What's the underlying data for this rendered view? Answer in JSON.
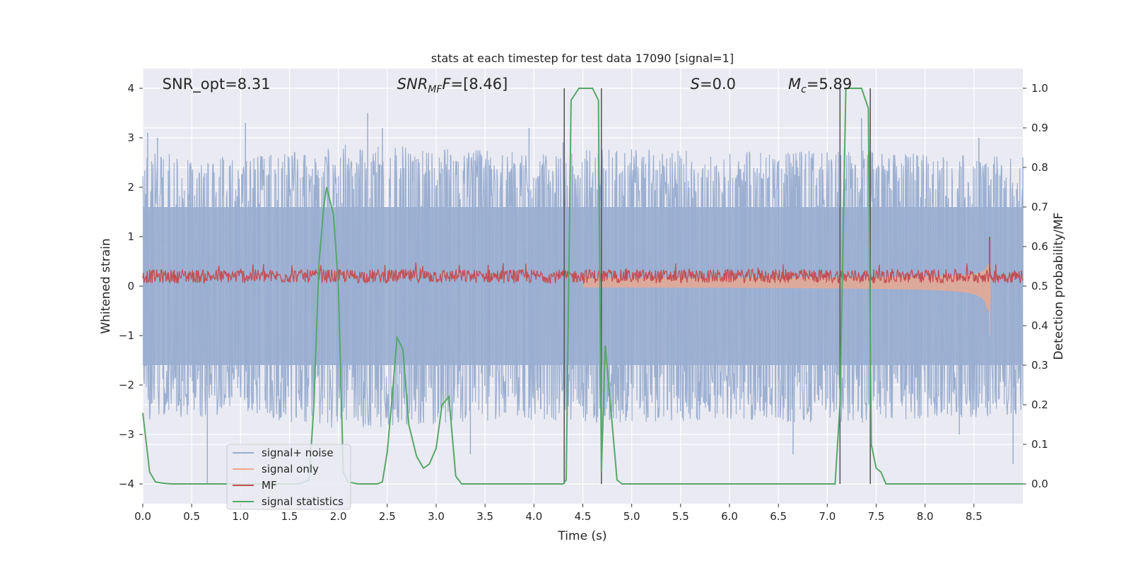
{
  "chart_data": {
    "type": "line",
    "title": "stats at each timestep for test data 17090 [signal=1]",
    "xlabel": "Time (s)",
    "ylabel_left": "Whitened strain",
    "ylabel_right": "Detection probability/MF",
    "xlim": [
      0.0,
      9.0
    ],
    "ylim_left": [
      -4.4,
      4.4
    ],
    "ylim_right": [
      -0.05,
      1.05
    ],
    "x_ticks": [
      0.0,
      0.5,
      1.0,
      1.5,
      2.0,
      2.5,
      3.0,
      3.5,
      4.0,
      4.5,
      5.0,
      5.5,
      6.0,
      6.5,
      7.0,
      7.5,
      8.0,
      8.5
    ],
    "x_tick_labels": [
      "0.0",
      "0.5",
      "1.0",
      "1.5",
      "2.0",
      "2.5",
      "3.0",
      "3.5",
      "4.0",
      "4.5",
      "5.0",
      "5.5",
      "6.0",
      "6.5",
      "7.0",
      "7.5",
      "8.0",
      "8.5"
    ],
    "y_left_ticks": [
      4,
      3,
      2,
      1,
      0,
      -1,
      -2,
      -3,
      -4
    ],
    "y_left_tick_labels": [
      "4",
      "3",
      "2",
      "1",
      "0",
      "−1",
      "−2",
      "−3",
      "−4"
    ],
    "y_right_ticks": [
      1.0,
      0.9,
      0.8,
      0.7,
      0.6,
      0.5,
      0.4,
      0.3,
      0.2,
      0.1,
      0.0
    ],
    "y_right_tick_labels": [
      "1.0",
      "0.9",
      "0.8",
      "0.7",
      "0.6",
      "0.5",
      "0.4",
      "0.3",
      "0.2",
      "0.1",
      "0.0"
    ],
    "grid": true,
    "annotations": [
      {
        "text": "SNR_opt=8.31",
        "x": 0.2,
        "y": 4.1
      },
      {
        "text": "SNR",
        "sub": "MF",
        "tail": "F=[8.46]",
        "italic": true,
        "x": 2.6,
        "y": 4.1
      },
      {
        "text": "S",
        "tail": "=0.0",
        "italic": true,
        "x": 5.6,
        "y": 4.1
      },
      {
        "text": "M",
        "sub": "c",
        "tail": "=5.89",
        "italic": true,
        "x": 6.6,
        "y": 4.1
      }
    ],
    "vertical_lines": [
      4.31,
      4.69,
      7.13,
      7.44
    ],
    "series": [
      {
        "name": "signal+ noise",
        "color": "#9aaed0",
        "axis": "left",
        "kind": "noise",
        "envelope": [
          [
            0.0,
            2.7
          ],
          [
            1.0,
            2.6
          ],
          [
            2.0,
            2.9
          ],
          [
            3.0,
            2.8
          ],
          [
            4.0,
            2.7
          ],
          [
            5.0,
            2.8
          ],
          [
            6.0,
            2.7
          ],
          [
            7.0,
            2.8
          ],
          [
            8.0,
            2.7
          ],
          [
            9.0,
            2.6
          ]
        ],
        "spikes": [
          [
            0.05,
            3.1
          ],
          [
            0.15,
            3.0
          ],
          [
            0.66,
            -4.0
          ],
          [
            1.05,
            3.3
          ],
          [
            2.3,
            3.5
          ],
          [
            2.45,
            3.2
          ],
          [
            3.35,
            -3.4
          ],
          [
            3.95,
            3.2
          ],
          [
            4.3,
            2.9
          ],
          [
            6.65,
            -3.4
          ],
          [
            7.35,
            3.4
          ],
          [
            8.35,
            -3.0
          ],
          [
            8.55,
            3.0
          ],
          [
            8.9,
            -3.6
          ],
          [
            9.0,
            2.6
          ]
        ]
      },
      {
        "name": "signal only",
        "color": "#e8a992",
        "axis": "left",
        "kind": "chirp",
        "start": 4.5,
        "merger": 8.66,
        "peak_amplitude": 1.0
      },
      {
        "name": "MF",
        "color": "#c44e52",
        "axis": "left",
        "kind": "mf",
        "baseline": 0.2,
        "spike_x": 8.66,
        "spike_y": 1.0
      },
      {
        "name": "signal statistics",
        "color": "#55a868",
        "axis": "right",
        "kind": "line",
        "x": [
          0.0,
          0.07,
          0.13,
          0.2,
          0.3,
          0.5,
          1.0,
          1.5,
          1.6,
          1.7,
          1.75,
          1.8,
          1.85,
          1.88,
          1.95,
          2.0,
          2.05,
          2.1,
          2.2,
          2.4,
          2.45,
          2.5,
          2.55,
          2.6,
          2.66,
          2.72,
          2.8,
          2.87,
          2.93,
          3.0,
          3.06,
          3.13,
          3.2,
          3.26,
          3.33,
          3.5,
          4.0,
          4.3,
          4.33,
          4.38,
          4.46,
          4.6,
          4.66,
          4.69,
          4.73,
          4.79,
          4.85,
          4.9,
          5.5,
          6.0,
          6.5,
          7.0,
          7.08,
          7.13,
          7.19,
          7.25,
          7.35,
          7.42,
          7.45,
          7.5,
          7.55,
          7.6,
          8.0,
          8.5,
          9.0
        ],
        "y": [
          0.18,
          0.03,
          0.005,
          0.002,
          0.0,
          0.0,
          0.0,
          0.0,
          0.0,
          0.01,
          0.2,
          0.55,
          0.7,
          0.75,
          0.68,
          0.5,
          0.03,
          0.005,
          0.0,
          0.0,
          0.005,
          0.08,
          0.22,
          0.37,
          0.34,
          0.15,
          0.07,
          0.04,
          0.05,
          0.09,
          0.2,
          0.22,
          0.02,
          0.0,
          0.0,
          0.0,
          0.0,
          0.0,
          0.01,
          0.97,
          1.0,
          1.0,
          0.97,
          0.03,
          0.35,
          0.18,
          0.01,
          0.0,
          0.0,
          0.0,
          0.0,
          0.0,
          0.0,
          0.2,
          1.0,
          1.0,
          1.0,
          0.95,
          0.1,
          0.04,
          0.03,
          0.0,
          0.0,
          0.0,
          0.0
        ]
      }
    ],
    "legend": {
      "placement": "lower-left",
      "entries": [
        "signal+ noise",
        "signal only",
        "MF",
        "signal statistics"
      ]
    }
  },
  "colors": {
    "plot_bg": "#eaeaf2",
    "grid": "#ffffff",
    "vline": "#595959"
  }
}
